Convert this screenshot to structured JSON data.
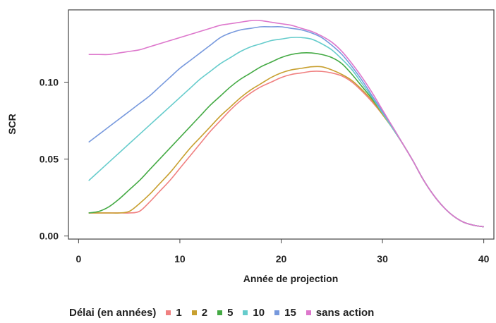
{
  "chart_data": {
    "type": "line",
    "title": "",
    "xlabel": "Année de projection",
    "ylabel": "SCR",
    "xlim": [
      -1,
      41
    ],
    "ylim": [
      -0.002,
      0.147
    ],
    "xticks": [
      0,
      10,
      20,
      30,
      40
    ],
    "xtick_labels": [
      "0",
      "10",
      "20",
      "30",
      "40"
    ],
    "yticks": [
      0.0,
      0.05,
      0.1
    ],
    "ytick_labels": [
      "0.00",
      "0.05",
      "0.10"
    ],
    "grid": false,
    "legend_title": "Délai (en années)",
    "legend_position": "bottom",
    "x": [
      1,
      2,
      3,
      4,
      5,
      6,
      7,
      8,
      9,
      10,
      11,
      12,
      13,
      14,
      15,
      16,
      17,
      18,
      19,
      20,
      21,
      22,
      23,
      24,
      25,
      26,
      27,
      28,
      29,
      30,
      31,
      32,
      33,
      34,
      35,
      36,
      37,
      38,
      39,
      40
    ],
    "series": [
      {
        "name": "1",
        "color": "#f08080",
        "values": [
          0.015,
          0.015,
          0.015,
          0.015,
          0.015,
          0.016,
          0.022,
          0.029,
          0.036,
          0.044,
          0.052,
          0.06,
          0.068,
          0.075,
          0.082,
          0.088,
          0.093,
          0.097,
          0.1,
          0.103,
          0.105,
          0.106,
          0.107,
          0.107,
          0.106,
          0.104,
          0.1,
          0.094,
          0.087,
          0.079,
          0.07,
          0.06,
          0.049,
          0.037,
          0.027,
          0.019,
          0.013,
          0.009,
          0.007,
          0.006
        ]
      },
      {
        "name": "2",
        "color": "#c8a030",
        "values": [
          0.015,
          0.015,
          0.015,
          0.015,
          0.016,
          0.021,
          0.027,
          0.034,
          0.041,
          0.049,
          0.057,
          0.064,
          0.071,
          0.078,
          0.084,
          0.09,
          0.095,
          0.099,
          0.103,
          0.106,
          0.108,
          0.109,
          0.11,
          0.11,
          0.108,
          0.105,
          0.101,
          0.095,
          0.088,
          0.079,
          0.07,
          0.06,
          0.049,
          0.037,
          0.027,
          0.019,
          0.013,
          0.009,
          0.007,
          0.006
        ]
      },
      {
        "name": "5",
        "color": "#44aa44",
        "values": [
          0.015,
          0.016,
          0.019,
          0.024,
          0.03,
          0.036,
          0.043,
          0.05,
          0.057,
          0.064,
          0.071,
          0.078,
          0.085,
          0.091,
          0.097,
          0.102,
          0.106,
          0.11,
          0.113,
          0.116,
          0.118,
          0.119,
          0.119,
          0.118,
          0.116,
          0.112,
          0.105,
          0.097,
          0.089,
          0.08,
          0.07,
          0.06,
          0.049,
          0.037,
          0.027,
          0.019,
          0.013,
          0.009,
          0.007,
          0.006
        ]
      },
      {
        "name": "10",
        "color": "#66cccc",
        "values": [
          0.036,
          0.042,
          0.048,
          0.054,
          0.06,
          0.066,
          0.072,
          0.078,
          0.084,
          0.09,
          0.096,
          0.102,
          0.107,
          0.112,
          0.116,
          0.12,
          0.123,
          0.125,
          0.127,
          0.128,
          0.129,
          0.129,
          0.128,
          0.125,
          0.121,
          0.115,
          0.108,
          0.099,
          0.09,
          0.08,
          0.07,
          0.06,
          0.049,
          0.037,
          0.027,
          0.019,
          0.013,
          0.009,
          0.007,
          0.006
        ]
      },
      {
        "name": "15",
        "color": "#7799dd",
        "values": [
          0.061,
          0.066,
          0.071,
          0.076,
          0.081,
          0.086,
          0.091,
          0.097,
          0.103,
          0.109,
          0.114,
          0.119,
          0.124,
          0.129,
          0.132,
          0.134,
          0.135,
          0.136,
          0.136,
          0.136,
          0.135,
          0.134,
          0.132,
          0.129,
          0.124,
          0.118,
          0.11,
          0.101,
          0.091,
          0.081,
          0.071,
          0.06,
          0.049,
          0.037,
          0.027,
          0.019,
          0.013,
          0.009,
          0.007,
          0.006
        ]
      },
      {
        "name": "sans action",
        "color": "#dd77cc",
        "values": [
          0.118,
          0.118,
          0.118,
          0.119,
          0.12,
          0.121,
          0.123,
          0.125,
          0.127,
          0.129,
          0.131,
          0.133,
          0.135,
          0.137,
          0.138,
          0.139,
          0.14,
          0.14,
          0.139,
          0.138,
          0.137,
          0.135,
          0.133,
          0.13,
          0.126,
          0.12,
          0.112,
          0.103,
          0.093,
          0.082,
          0.071,
          0.06,
          0.049,
          0.037,
          0.027,
          0.019,
          0.013,
          0.009,
          0.007,
          0.006
        ]
      }
    ]
  }
}
